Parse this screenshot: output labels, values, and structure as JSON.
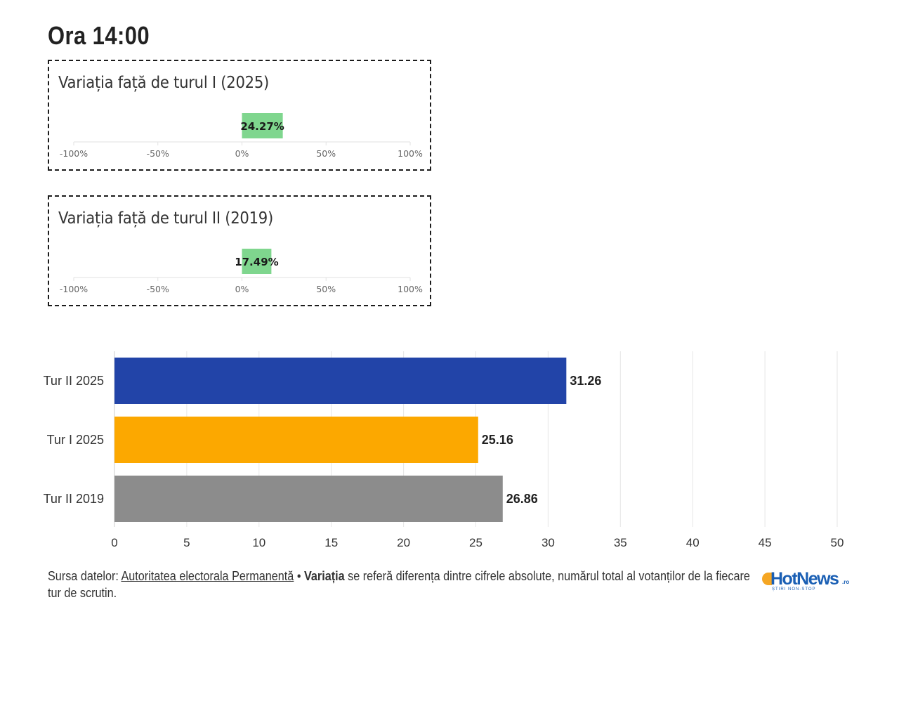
{
  "title": "Ora 14:00",
  "variation_boxes": [
    {
      "title": "Variația față de turul I (2025)",
      "value": 24.27,
      "value_label": "24.27%",
      "axis_ticks": [
        "-100%",
        "-50%",
        "0%",
        "50%",
        "100%"
      ],
      "axis_range": [
        -100,
        100
      ]
    },
    {
      "title": "Variația față de turul II (2019)",
      "value": 17.49,
      "value_label": "17.49%",
      "axis_ticks": [
        "-100%",
        "-50%",
        "0%",
        "50%",
        "100%"
      ],
      "axis_range": [
        -100,
        100
      ]
    }
  ],
  "colors": {
    "positive_bar": "#7fd68e",
    "tur2_2025": "#2244a8",
    "tur1_2025": "#fca800",
    "tur2_2019": "#8c8c8c",
    "grid": "#e6e6e6"
  },
  "chart_data": {
    "type": "bar",
    "orientation": "horizontal",
    "categories": [
      "Tur II 2025",
      "Tur I 2025",
      "Tur II 2019"
    ],
    "values": [
      31.26,
      25.16,
      26.86
    ],
    "value_labels": [
      "31.26",
      "25.16",
      "26.86"
    ],
    "xlim": [
      0,
      50
    ],
    "x_ticks": [
      "0",
      "5",
      "10",
      "15",
      "20",
      "25",
      "30",
      "35",
      "40",
      "45",
      "50"
    ],
    "grid": true
  },
  "footer": {
    "source_prefix": "Sursa datelor: ",
    "source_link": "Autoritatea electorala Permanentă",
    "separator": " • ",
    "bold_term": "Variația",
    "rest": " se referă diferența dintre cifrele absolute, numărul total al votanților de la fiecare tur de scrutin."
  },
  "logo": {
    "brand": "HotNews",
    "suffix": ".ro",
    "tagline": "ȘTIRI NON-STOP"
  }
}
